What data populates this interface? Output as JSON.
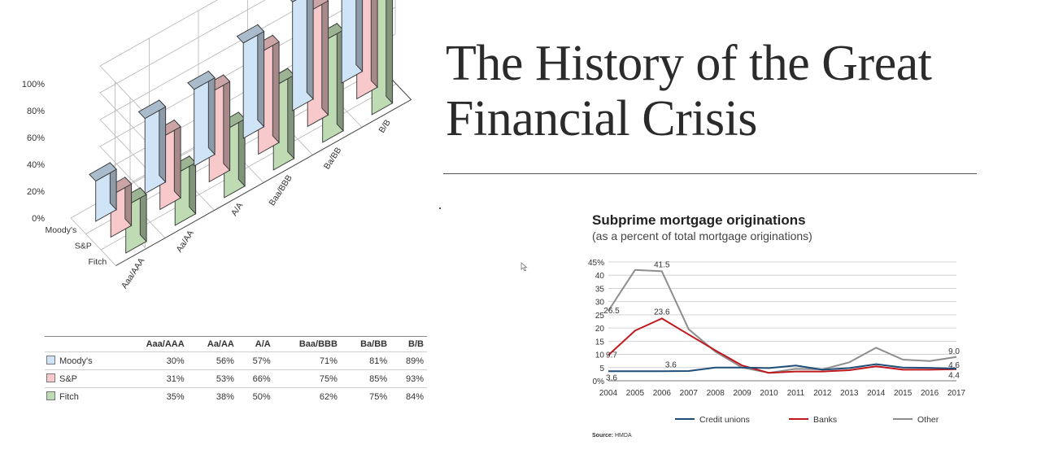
{
  "slide": {
    "title_line1": "The History of the Great",
    "title_line2": "Financial Crisis"
  },
  "chart_data": [
    {
      "type": "bar",
      "categories": [
        "Aaa/AAA",
        "Aa/AA",
        "A/A",
        "Baa/BBB",
        "Ba/BB",
        "B/B"
      ],
      "series": [
        {
          "name": "Moody's",
          "values": [
            30,
            56,
            57,
            71,
            81,
            89
          ],
          "color": "#cfe4f7"
        },
        {
          "name": "S&P",
          "values": [
            31,
            53,
            66,
            75,
            85,
            93
          ],
          "color": "#f7c9cb"
        },
        {
          "name": "Fitch",
          "values": [
            35,
            38,
            50,
            62,
            75,
            84
          ],
          "color": "#bedbb4"
        }
      ],
      "ylim": [
        0,
        100
      ],
      "yticks": [
        "0%",
        "20%",
        "40%",
        "60%",
        "80%",
        "100%"
      ],
      "grid": true,
      "table": {
        "headers": [
          "",
          "Aaa/AAA",
          "Aa/AA",
          "A/A",
          "Baa/BBB",
          "Ba/BB",
          "B/B"
        ],
        "rows": [
          {
            "name": "Moody's",
            "cells": [
              "30%",
              "56%",
              "57%",
              "71%",
              "81%",
              "89%"
            ]
          },
          {
            "name": "S&P",
            "cells": [
              "31%",
              "53%",
              "66%",
              "75%",
              "85%",
              "93%"
            ]
          },
          {
            "name": "Fitch",
            "cells": [
              "35%",
              "38%",
              "50%",
              "62%",
              "75%",
              "84%"
            ]
          }
        ]
      }
    },
    {
      "type": "line",
      "title": "Subprime mortgage originations",
      "subtitle": "(as a percent of total mortgage originations)",
      "x": [
        2004,
        2005,
        2006,
        2007,
        2008,
        2009,
        2010,
        2011,
        2012,
        2013,
        2014,
        2015,
        2016,
        2017
      ],
      "ylim": [
        0,
        45
      ],
      "yticks": [
        "0%",
        "5",
        "10",
        "15",
        "20",
        "25",
        "30",
        "35",
        "40",
        "45%"
      ],
      "series": [
        {
          "name": "Credit unions",
          "color": "#1f4e79",
          "values": [
            3.6,
            3.6,
            3.6,
            3.7,
            5.0,
            5.0,
            4.8,
            5.8,
            4.2,
            4.8,
            6.3,
            5.0,
            4.9,
            4.6
          ]
        },
        {
          "name": "Banks",
          "color": "#c0181d",
          "values": [
            9.7,
            19.0,
            23.6,
            17.5,
            11.5,
            5.8,
            3.0,
            3.5,
            3.5,
            4.0,
            5.5,
            4.2,
            4.2,
            4.4
          ]
        },
        {
          "name": "Other",
          "color": "#8e8e8e",
          "values": [
            26.5,
            42.0,
            41.5,
            19.5,
            11.0,
            5.0,
            3.0,
            4.5,
            4.3,
            7.0,
            12.5,
            8.0,
            7.5,
            9.0
          ]
        }
      ],
      "annotations": [
        {
          "text": "26.5",
          "x": 2004,
          "y": 26.5
        },
        {
          "text": "41.5",
          "x": 2006,
          "y": 41.5
        },
        {
          "text": "23.6",
          "x": 2006,
          "y": 23.6
        },
        {
          "text": "9.7",
          "x": 2004,
          "y": 9.7
        },
        {
          "text": "3.6",
          "x": 2004,
          "y": 3.6
        },
        {
          "text": "3.6",
          "x": 2006,
          "y": 3.6
        },
        {
          "text": "9.0",
          "x": 2017,
          "y": 9.0
        },
        {
          "text": "4.6",
          "x": 2017,
          "y": 4.6
        },
        {
          "text": "4.4",
          "x": 2017,
          "y": 4.4
        }
      ],
      "source_label": "Source:",
      "source": "HMDA",
      "grid": true,
      "legend": "bottom"
    }
  ]
}
